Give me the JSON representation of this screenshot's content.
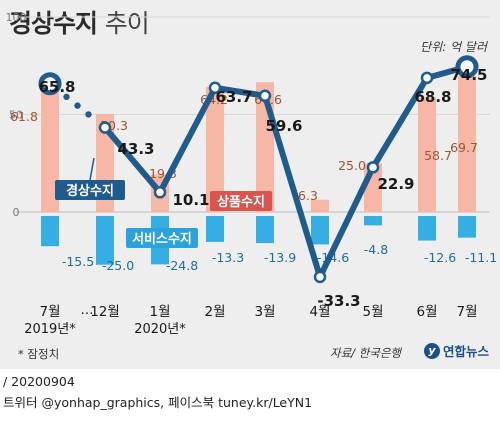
{
  "header": {
    "title": "경상수지",
    "title_sub": "추이",
    "unit": "단위: 억 달러"
  },
  "chart_data": {
    "type": "bar+line",
    "categories": [
      {
        "month": "7월",
        "year": "2019년*"
      },
      {
        "month": "12월",
        "year": ""
      },
      {
        "month": "1월",
        "year": "2020년*"
      },
      {
        "month": "2월",
        "year": ""
      },
      {
        "month": "3월",
        "year": ""
      },
      {
        "month": "4월",
        "year": ""
      },
      {
        "month": "5월",
        "year": ""
      },
      {
        "month": "6월",
        "year": ""
      },
      {
        "month": "7월",
        "year": ""
      }
    ],
    "gap_marker": "…",
    "yticks": [
      0,
      50,
      100
    ],
    "ylim": [
      -40,
      100
    ],
    "series": [
      {
        "name": "경상수지",
        "kind": "line",
        "values": [
          65.8,
          43.3,
          10.1,
          63.7,
          59.6,
          -33.3,
          22.9,
          68.8,
          74.5
        ],
        "labels": [
          "65.8",
          "43.3",
          "10.1",
          "63.7",
          "59.6",
          "-33.3",
          "22.9",
          "68.8",
          "74.5"
        ],
        "color": "#1f5c8d"
      },
      {
        "name": "상품수지",
        "kind": "bar",
        "values": [
          61.8,
          50.3,
          19.3,
          64.2,
          66.6,
          6.3,
          25.0,
          58.7,
          69.7
        ],
        "labels": [
          "61.8",
          "50.3",
          "19.3",
          "64.2",
          "66.6",
          "6.3",
          "25.0",
          "58.7",
          "69.7"
        ],
        "color": "#f6b7a6"
      },
      {
        "name": "서비스수지",
        "kind": "bar",
        "values": [
          -15.5,
          -25.0,
          -24.8,
          -13.3,
          -13.9,
          -14.6,
          -4.8,
          -12.6,
          -11.1
        ],
        "labels": [
          "-15.5",
          "-25.0",
          "-24.8",
          "-13.3",
          "-13.9",
          "-14.6",
          "-4.8",
          "-12.6",
          "-11.1"
        ],
        "color": "#36aee3"
      }
    ],
    "series_tags": [
      "경상수지",
      "상품수지",
      "서비스수지"
    ],
    "tag_colors": {
      "경상수지": "#1f5c8d",
      "상품수지": "#d9534f",
      "서비스수지": "#2aa3dc"
    }
  },
  "note": "* 잠정치",
  "source": "자료/ 한국은행",
  "logo": {
    "mark": "y",
    "name": "연합뉴스"
  },
  "footer": {
    "date": "/ 20200904",
    "social": "트위터 @yonhap_graphics, 페이스북 tuney.kr/LeYN1"
  }
}
